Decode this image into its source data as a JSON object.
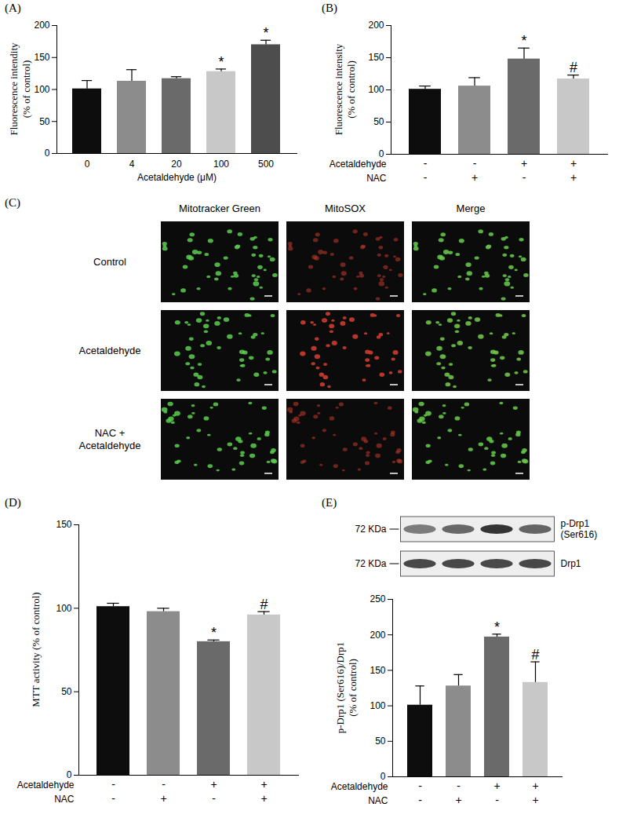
{
  "chart_data": [
    {
      "type": "bar",
      "title": "(A)",
      "categories": [
        "0",
        "4",
        "20",
        "100",
        "500"
      ],
      "values": [
        101,
        113,
        117,
        128,
        170
      ],
      "errors": [
        13,
        18,
        3,
        4,
        7
      ],
      "colors": [
        "#0d0d0d",
        "#8c8c8c",
        "#6a6a6a",
        "#c8c8c8",
        "#4d4d4d"
      ],
      "annotations": [
        null,
        null,
        null,
        "*",
        "*"
      ],
      "x_label": "Acetaldehyde (μM)",
      "y_label": "Fluorescence intendity\n(% of control)",
      "ylim": [
        0,
        200
      ],
      "yticks": [
        0,
        50,
        100,
        150,
        200
      ]
    },
    {
      "type": "bar",
      "title": "(B)",
      "categories": [
        null,
        null,
        null,
        null
      ],
      "values": [
        101,
        106,
        148,
        117
      ],
      "errors": [
        5,
        13,
        17,
        6
      ],
      "colors": [
        "#0d0d0d",
        "#8c8c8c",
        "#6a6a6a",
        "#c8c8c8"
      ],
      "annotations": [
        null,
        null,
        "*",
        "#"
      ],
      "treatments": [
        {
          "name": "Acetaldehyde",
          "values": [
            "-",
            "-",
            "+",
            "+"
          ]
        },
        {
          "name": "NAC",
          "values": [
            "-",
            "+",
            "-",
            "+"
          ]
        }
      ],
      "y_label": "Fluorescence intensity\n(% of control)",
      "ylim": [
        0,
        200
      ],
      "yticks": [
        0,
        50,
        100,
        150,
        200
      ]
    },
    {
      "type": "bar",
      "title": "(D)",
      "categories": [
        null,
        null,
        null,
        null
      ],
      "values": [
        101,
        98,
        80,
        96
      ],
      "errors": [
        2,
        2,
        1,
        2
      ],
      "colors": [
        "#0d0d0d",
        "#8c8c8c",
        "#6a6a6a",
        "#c8c8c8"
      ],
      "annotations": [
        null,
        null,
        "*",
        "#"
      ],
      "treatments": [
        {
          "name": "Acetaldehyde",
          "values": [
            "-",
            "-",
            "+",
            "+"
          ]
        },
        {
          "name": "NAC",
          "values": [
            "-",
            "+",
            "-",
            "+"
          ]
        }
      ],
      "y_label": "MTT activity (% of control)",
      "ylim": [
        0,
        150
      ],
      "yticks": [
        0,
        50,
        100,
        150
      ]
    },
    {
      "type": "bar",
      "title": "(E)",
      "categories": [
        null,
        null,
        null,
        null
      ],
      "values": [
        101,
        128,
        197,
        133
      ],
      "errors": [
        27,
        16,
        4,
        29
      ],
      "colors": [
        "#0d0d0d",
        "#8c8c8c",
        "#6a6a6a",
        "#c8c8c8"
      ],
      "annotations": [
        null,
        null,
        "*",
        "#"
      ],
      "treatments": [
        {
          "name": "Acetaldehyde",
          "values": [
            "-",
            "-",
            "+",
            "+"
          ]
        },
        {
          "name": "NAC",
          "values": [
            "-",
            "+",
            "-",
            "+"
          ]
        }
      ],
      "y_label": "p-Drp1 (Ser616)/Drp1\n(% of control)",
      "ylim": [
        0,
        250
      ],
      "yticks": [
        0,
        50,
        100,
        150,
        200,
        250
      ],
      "blot": [
        {
          "label": "p-Drp1\n(Ser616)",
          "size": "72 KDa"
        },
        {
          "label": "Drp1",
          "size": "72 KDa"
        }
      ]
    }
  ],
  "image_panel": {
    "title": "(C)",
    "columns": [
      "Mitotracker Green",
      "MitoSOX",
      "Merge"
    ],
    "rows": [
      "Control",
      "Acetaldehyde",
      "NAC +\nAcetaldehyde"
    ]
  }
}
